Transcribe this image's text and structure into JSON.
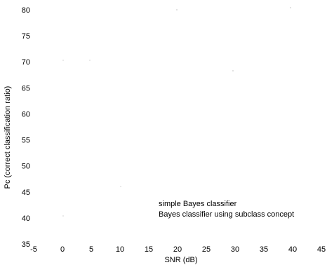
{
  "chart_data": {
    "type": "line",
    "title": "",
    "xlabel": "SNR (dB)",
    "ylabel": "Pc (correct classification ratio)",
    "xlim": [
      -5,
      45
    ],
    "ylim": [
      35,
      80
    ],
    "x_ticks": [
      "-5",
      "0",
      "5",
      "10",
      "15",
      "20",
      "25",
      "30",
      "35",
      "40",
      "45"
    ],
    "y_ticks": [
      "35",
      "40",
      "45",
      "50",
      "55",
      "60",
      "65",
      "70",
      "75",
      "80"
    ],
    "grid": false,
    "legend_position": "lower-right",
    "legend": [
      "simple Bayes classifier",
      "Bayes classifier using subclass concept"
    ],
    "series": [
      {
        "name": "simple Bayes classifier",
        "x": [],
        "y": []
      },
      {
        "name": "Bayes classifier using subclass concept",
        "x": [],
        "y": []
      }
    ]
  }
}
